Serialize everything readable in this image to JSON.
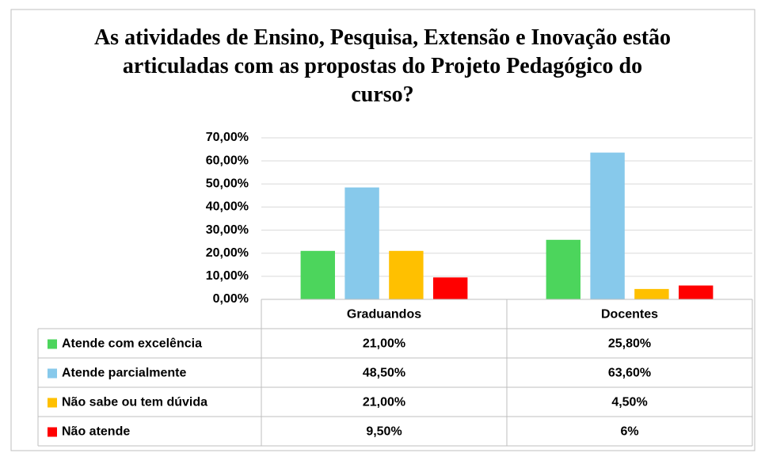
{
  "chart_data": {
    "type": "bar",
    "title": "As atividades de Ensino, Pesquisa, Extensão e Inovação estão articuladas com as propostas do Projeto Pedagógico do curso?",
    "categories": [
      "Graduandos",
      "Docentes"
    ],
    "series": [
      {
        "name": "Atende com excelência",
        "color": "#4cd55c",
        "values": [
          21,
          25.8
        ],
        "value_labels": [
          "21,00%",
          "25,80%"
        ]
      },
      {
        "name": "Atende parcialmente",
        "color": "#87c9eb",
        "values": [
          48.5,
          63.6
        ],
        "value_labels": [
          "48,50%",
          "63,60%"
        ]
      },
      {
        "name": "Não sabe ou tem dúvida",
        "color": "#ffc000",
        "values": [
          21,
          4.5
        ],
        "value_labels": [
          "21,00%",
          "4,50%"
        ]
      },
      {
        "name": "Não atende",
        "color": "#ff0000",
        "values": [
          9.5,
          6
        ],
        "value_labels": [
          "9,50%",
          "6%"
        ]
      }
    ],
    "ylim": [
      0,
      70
    ],
    "yticks": [
      {
        "value": 0,
        "label": "0,00%"
      },
      {
        "value": 10,
        "label": "10,00%"
      },
      {
        "value": 20,
        "label": "20,00%"
      },
      {
        "value": 30,
        "label": "30,00%"
      },
      {
        "value": 40,
        "label": "40,00%"
      },
      {
        "value": 50,
        "label": "50,00%"
      },
      {
        "value": 60,
        "label": "60,00%"
      },
      {
        "value": 70,
        "label": "70,00%"
      }
    ],
    "grid": true
  }
}
